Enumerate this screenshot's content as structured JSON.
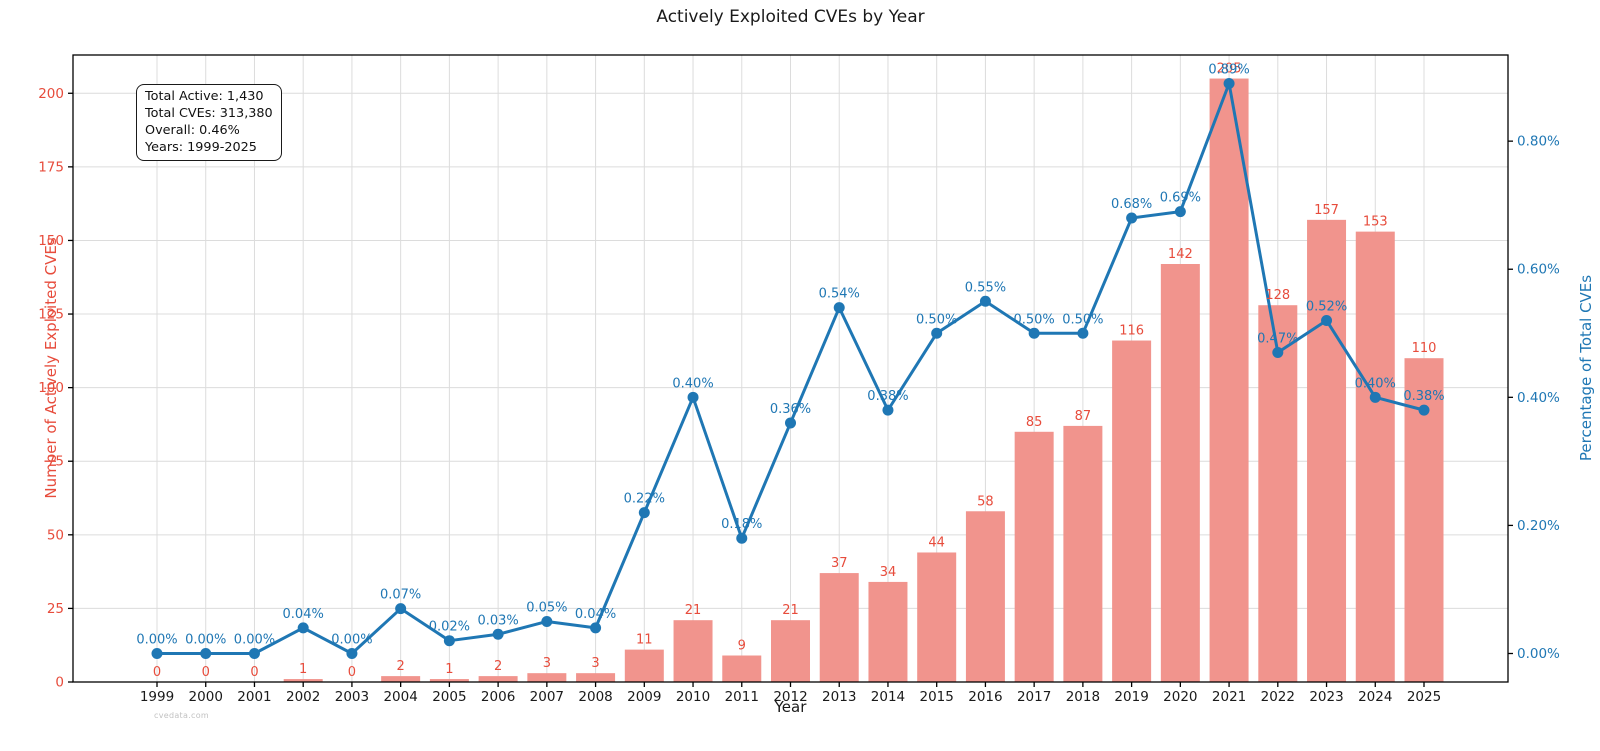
{
  "title": "Actively Exploited CVEs by Year",
  "watermark": "cvedata.com",
  "info_box": {
    "lines": [
      "Total Active: 1,430",
      "Total CVEs: 313,380",
      "Overall: 0.46%",
      "Years: 1999-2025"
    ]
  },
  "colors": {
    "bar": "#f1948d",
    "bar_label": "#e74c3c",
    "left_axis": "#e74c3c",
    "line": "#1f77b4",
    "right_axis": "#1f77b4",
    "grid": "#dcdcdc",
    "spine": "#000000",
    "xtick": "#1a1a1a",
    "title": "#1a1a1a",
    "watermark": "#c2c2c2"
  },
  "chart_data": {
    "type": "bar",
    "title": "Actively Exploited CVEs by Year",
    "xlabel": "Year",
    "grid": true,
    "legend": "none",
    "categories": [
      "1999",
      "2000",
      "2001",
      "2002",
      "2003",
      "2004",
      "2005",
      "2006",
      "2007",
      "2008",
      "2009",
      "2010",
      "2011",
      "2012",
      "2013",
      "2014",
      "2015",
      "2016",
      "2017",
      "2018",
      "2019",
      "2020",
      "2021",
      "2022",
      "2023",
      "2024",
      "2025"
    ],
    "series": [
      {
        "name": "Number of Actively Exploited CVEs",
        "chart": "bar",
        "axis": "left",
        "values": [
          0,
          0,
          0,
          1,
          0,
          2,
          1,
          2,
          3,
          3,
          11,
          21,
          9,
          21,
          37,
          34,
          44,
          58,
          85,
          87,
          116,
          142,
          205,
          128,
          157,
          153,
          110
        ]
      },
      {
        "name": "Percentage of Total CVEs",
        "chart": "line",
        "axis": "right",
        "values": [
          0.0,
          0.0,
          0.0,
          0.04,
          0.0,
          0.07,
          0.02,
          0.03,
          0.05,
          0.04,
          0.22,
          0.4,
          0.18,
          0.36,
          0.54,
          0.38,
          0.5,
          0.55,
          0.5,
          0.5,
          0.68,
          0.69,
          0.89,
          0.47,
          0.52,
          0.4,
          0.38
        ],
        "labels": [
          "0.00%",
          "0.00%",
          "0.00%",
          "0.04%",
          "0.00%",
          "0.07%",
          "0.02%",
          "0.03%",
          "0.05%",
          "0.04%",
          "0.22%",
          "0.40%",
          "0.18%",
          "0.36%",
          "0.54%",
          "0.38%",
          "0.50%",
          "0.55%",
          "0.50%",
          "0.50%",
          "0.68%",
          "0.69%",
          "0.89%",
          "0.47%",
          "0.52%",
          "0.40%",
          "0.38%"
        ]
      }
    ],
    "left_axis": {
      "label": "Number of Actively Exploited CVEs",
      "ticks": [
        0,
        25,
        50,
        75,
        100,
        125,
        150,
        175,
        200
      ],
      "range": [
        0,
        213
      ]
    },
    "right_axis": {
      "label": "Percentage of Total CVEs",
      "ticks": [
        "0.00%",
        "0.20%",
        "0.40%",
        "0.60%",
        "0.80%"
      ],
      "tick_values": [
        0.0,
        0.2,
        0.4,
        0.6,
        0.8
      ],
      "range": [
        -0.0445,
        0.9345
      ]
    }
  }
}
